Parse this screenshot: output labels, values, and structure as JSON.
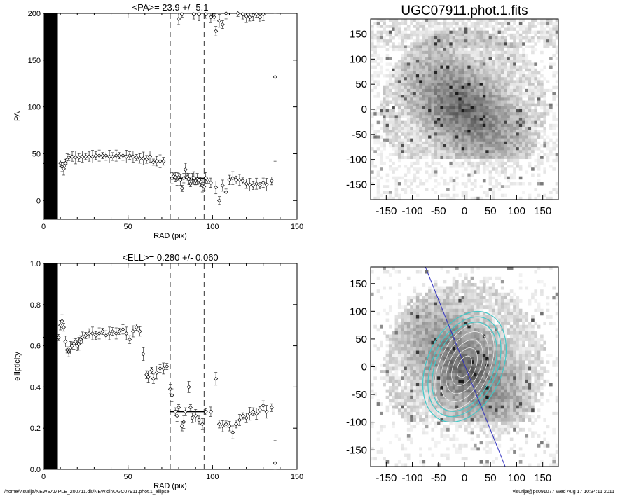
{
  "chart_data": [
    {
      "type": "scatter",
      "title": "<PA>=  23.9 +/-   5.1",
      "xlabel": "RAD (pix)",
      "ylabel": "PA",
      "xlim": [
        0,
        150
      ],
      "ylim": [
        -20,
        200
      ],
      "xticks": [
        "0",
        "50",
        "100",
        "150"
      ],
      "yticks": [
        "0",
        "50",
        "100",
        "150",
        "200"
      ],
      "mean": 23.9,
      "range_markers": [
        75,
        95
      ],
      "points": [
        [
          10,
          40
        ],
        [
          11,
          36
        ],
        [
          12,
          34
        ],
        [
          13,
          40
        ],
        [
          14,
          44
        ],
        [
          15,
          46
        ],
        [
          17,
          47
        ],
        [
          19,
          46
        ],
        [
          21,
          46
        ],
        [
          23,
          47
        ],
        [
          25,
          47
        ],
        [
          27,
          47
        ],
        [
          29,
          47
        ],
        [
          31,
          48
        ],
        [
          33,
          48
        ],
        [
          35,
          48
        ],
        [
          37,
          48
        ],
        [
          39,
          47
        ],
        [
          41,
          47
        ],
        [
          43,
          48
        ],
        [
          45,
          48
        ],
        [
          47,
          48
        ],
        [
          49,
          47
        ],
        [
          51,
          48
        ],
        [
          53,
          47
        ],
        [
          55,
          46
        ],
        [
          57,
          45
        ],
        [
          59,
          45
        ],
        [
          61,
          44
        ],
        [
          63,
          47
        ],
        [
          65,
          41
        ],
        [
          67,
          42
        ],
        [
          69,
          42
        ],
        [
          71,
          42
        ],
        [
          76,
          24
        ],
        [
          77,
          26
        ],
        [
          78,
          25
        ],
        [
          79,
          23
        ],
        [
          80,
          25
        ],
        [
          81,
          22
        ],
        [
          82,
          13
        ],
        [
          83,
          24
        ],
        [
          84,
          33
        ],
        [
          85,
          25
        ],
        [
          86,
          23
        ],
        [
          87,
          18
        ],
        [
          88,
          24
        ],
        [
          89,
          24
        ],
        [
          90,
          21
        ],
        [
          91,
          23
        ],
        [
          92,
          22
        ],
        [
          93,
          20
        ],
        [
          94,
          16
        ],
        [
          95,
          15
        ],
        [
          96,
          24
        ],
        [
          97,
          22
        ],
        [
          99,
          19
        ],
        [
          102,
          14
        ],
        [
          104,
          0
        ],
        [
          106,
          16
        ],
        [
          108,
          9
        ],
        [
          110,
          22
        ],
        [
          112,
          24
        ],
        [
          114,
          22
        ],
        [
          116,
          22
        ],
        [
          118,
          21
        ],
        [
          120,
          18
        ],
        [
          122,
          17
        ],
        [
          124,
          16
        ],
        [
          126,
          18
        ],
        [
          128,
          16
        ],
        [
          130,
          19
        ],
        [
          132,
          17
        ],
        [
          135,
          21
        ],
        [
          80,
          194
        ],
        [
          82,
          199
        ],
        [
          89,
          199
        ],
        [
          92,
          199
        ],
        [
          96,
          199
        ],
        [
          99,
          196
        ],
        [
          101,
          196
        ],
        [
          102,
          181
        ],
        [
          104,
          192
        ],
        [
          106,
          188
        ],
        [
          108,
          200
        ],
        [
          115,
          200
        ],
        [
          118,
          199
        ],
        [
          120,
          197
        ],
        [
          122,
          196
        ],
        [
          124,
          198
        ],
        [
          126,
          199
        ],
        [
          128,
          196
        ],
        [
          130,
          199
        ],
        [
          137,
          132
        ]
      ]
    },
    {
      "type": "scatter",
      "title": "<ELL>= 0.280 +/-  0.060",
      "xlabel": "RAD (pix)",
      "ylabel": "ellipticity",
      "xlim": [
        0,
        150
      ],
      "ylim": [
        0,
        1
      ],
      "xticks": [
        "0",
        "50",
        "100",
        "150"
      ],
      "yticks": [
        "0.0",
        "0.2",
        "0.4",
        "0.6",
        "0.8",
        "1.0"
      ],
      "mean": 0.28,
      "range_markers": [
        75,
        95
      ],
      "points": [
        [
          9,
          0.64
        ],
        [
          10,
          0.7
        ],
        [
          11,
          0.72
        ],
        [
          12,
          0.69
        ],
        [
          13,
          0.62
        ],
        [
          14,
          0.58
        ],
        [
          15,
          0.57
        ],
        [
          16,
          0.59
        ],
        [
          17,
          0.6
        ],
        [
          18,
          0.61
        ],
        [
          19,
          0.62
        ],
        [
          20,
          0.6
        ],
        [
          21,
          0.61
        ],
        [
          22,
          0.63
        ],
        [
          23,
          0.64
        ],
        [
          25,
          0.65
        ],
        [
          27,
          0.66
        ],
        [
          29,
          0.66
        ],
        [
          31,
          0.65
        ],
        [
          33,
          0.66
        ],
        [
          35,
          0.67
        ],
        [
          37,
          0.65
        ],
        [
          39,
          0.66
        ],
        [
          41,
          0.67
        ],
        [
          43,
          0.66
        ],
        [
          45,
          0.67
        ],
        [
          47,
          0.68
        ],
        [
          49,
          0.66
        ],
        [
          51,
          0.63
        ],
        [
          53,
          0.67
        ],
        [
          55,
          0.69
        ],
        [
          57,
          0.67
        ],
        [
          59,
          0.56
        ],
        [
          61,
          0.46
        ],
        [
          62,
          0.45
        ],
        [
          64,
          0.48
        ],
        [
          65,
          0.44
        ],
        [
          67,
          0.47
        ],
        [
          69,
          0.49
        ],
        [
          71,
          0.49
        ],
        [
          73,
          0.5
        ],
        [
          75,
          0.39
        ],
        [
          76,
          0.36
        ],
        [
          78,
          0.28
        ],
        [
          79,
          0.26
        ],
        [
          80,
          0.3
        ],
        [
          82,
          0.21
        ],
        [
          83,
          0.23
        ],
        [
          84,
          0.28
        ],
        [
          86,
          0.4
        ],
        [
          87,
          0.3
        ],
        [
          88,
          0.25
        ],
        [
          90,
          0.26
        ],
        [
          92,
          0.24
        ],
        [
          94,
          0.22
        ],
        [
          96,
          0.28
        ],
        [
          99,
          0.28
        ],
        [
          102,
          0.44
        ],
        [
          104,
          0.22
        ],
        [
          106,
          0.21
        ],
        [
          108,
          0.22
        ],
        [
          110,
          0.21
        ],
        [
          112,
          0.18
        ],
        [
          114,
          0.22
        ],
        [
          116,
          0.24
        ],
        [
          118,
          0.26
        ],
        [
          120,
          0.25
        ],
        [
          122,
          0.27
        ],
        [
          124,
          0.28
        ],
        [
          126,
          0.27
        ],
        [
          128,
          0.29
        ],
        [
          130,
          0.31
        ],
        [
          132,
          0.28
        ],
        [
          135,
          0.3
        ],
        [
          137,
          0.03
        ]
      ]
    },
    {
      "type": "heatmap",
      "title": "UGC07911.phot.1.fits",
      "xlim": [
        -180,
        180
      ],
      "ylim": [
        -180,
        180
      ],
      "xticks": [
        "-150",
        "-100",
        "-50",
        "0",
        "50",
        "100",
        "150"
      ],
      "yticks": [
        "-150",
        "-100",
        "-50",
        "0",
        "50",
        "100",
        "150"
      ]
    },
    {
      "type": "heatmap",
      "title": "",
      "xlim": [
        -180,
        180
      ],
      "ylim": [
        -180,
        180
      ],
      "xticks": [
        "-150",
        "-100",
        "-50",
        "0",
        "50",
        "100",
        "150"
      ],
      "yticks": [
        "-150",
        "-100",
        "-50",
        "0",
        "50",
        "100",
        "150"
      ]
    }
  ],
  "footer": {
    "path": "/home/visurija/NEWSAMPLE_200711.dir/NEW.dir/UGC07911.phot.1_ellipse",
    "stamp": "visurija@pc091077  Wed Aug 17 10:34:11 2011"
  },
  "colors": {
    "contour_cyan": "#40c8c8",
    "pa_line": "#3030c0"
  }
}
